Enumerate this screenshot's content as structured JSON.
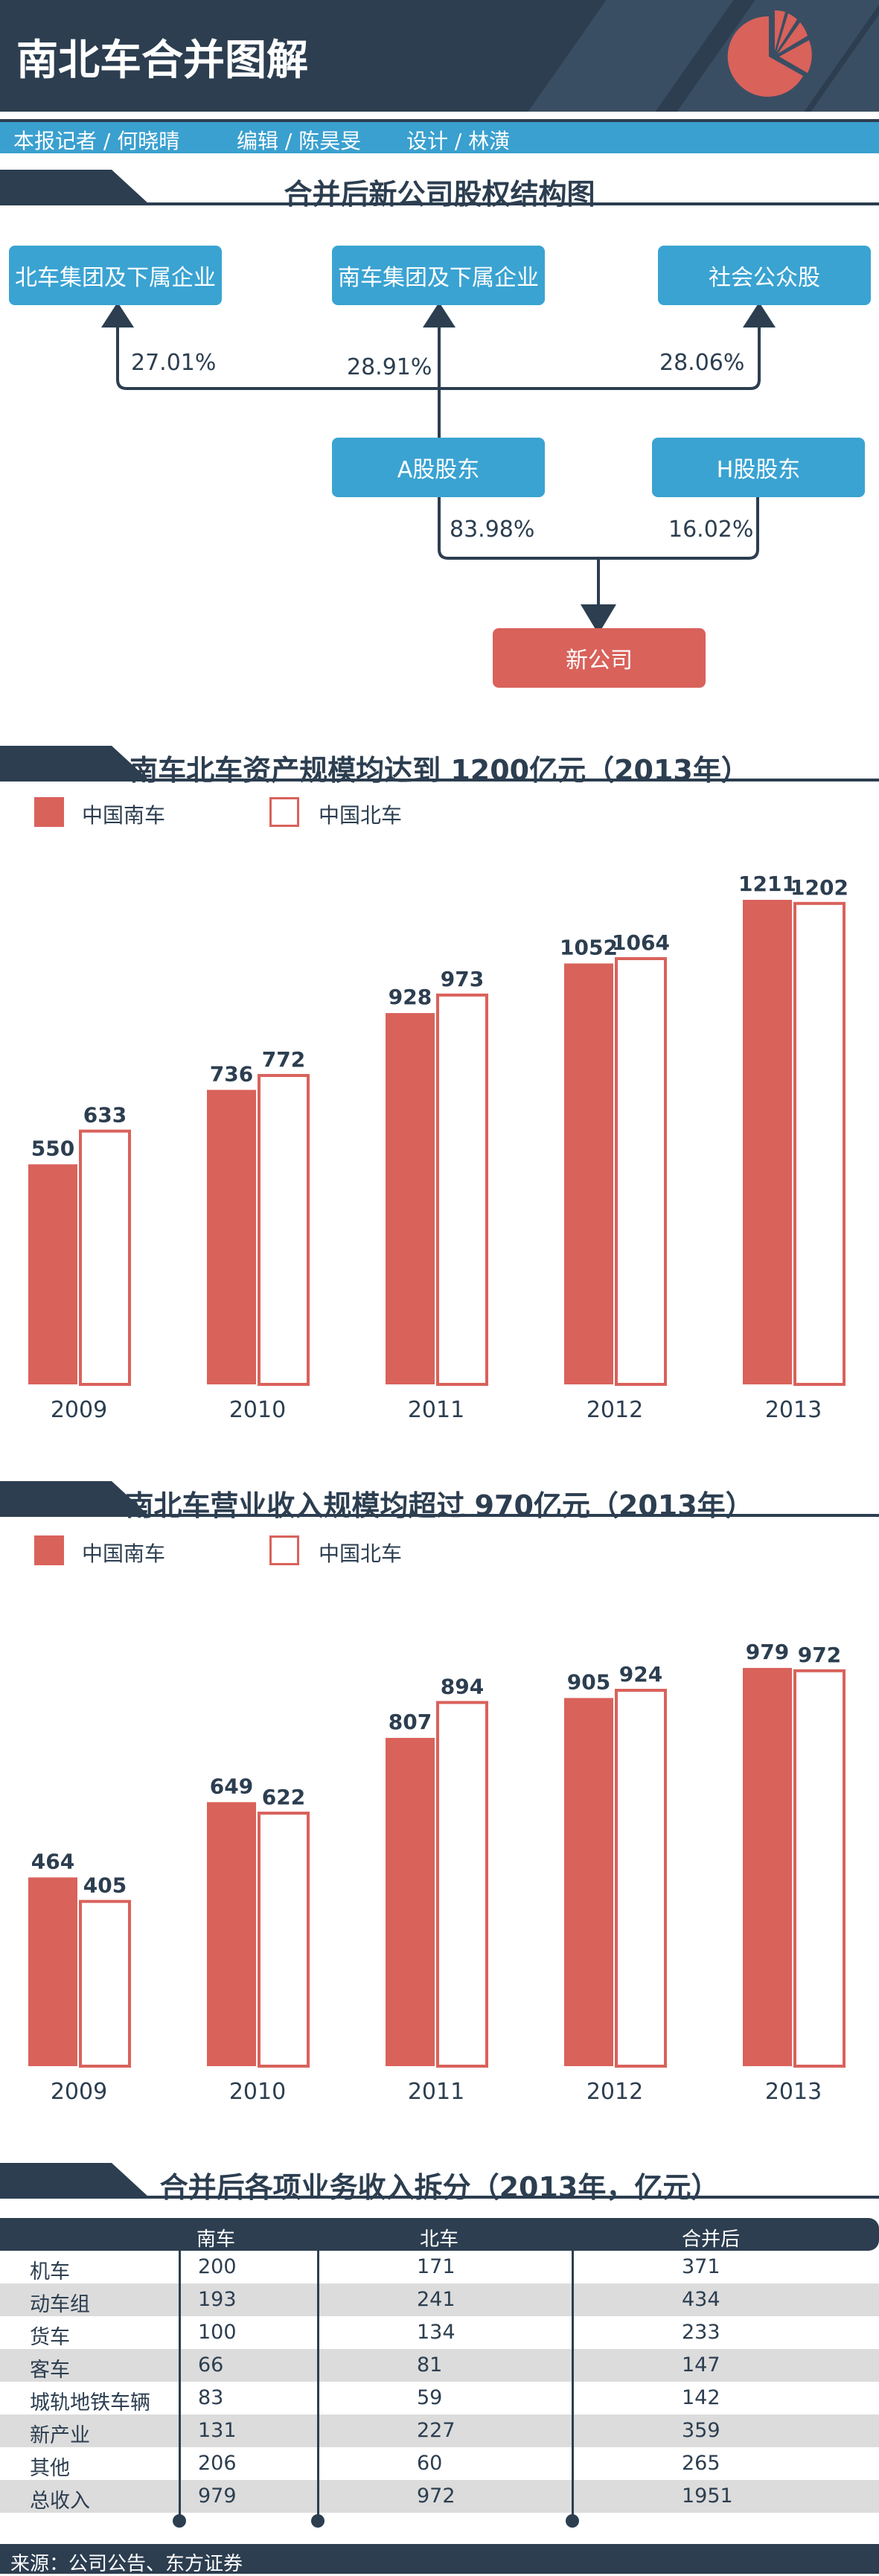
{
  "header": {
    "title": "南北车合并图解",
    "logo": "pie-chart-icon",
    "bg_color": "#2c3e50"
  },
  "credits": {
    "reporter": "本报记者 /  何晓晴",
    "editor": "编辑 / 陈昊旻",
    "design": "设计 / 林潢"
  },
  "structure": {
    "title": "合并后新公司股权结构图",
    "nodes": {
      "north": "北车集团及下属企业",
      "south": "南车集团及下属企业",
      "public": "社会公众股",
      "a_share": "A股股东",
      "h_share": "H股股东",
      "newco": "新公司"
    },
    "pcts": {
      "north": "27.01%",
      "south": "28.91%",
      "public": "28.06%",
      "a_share": "83.98%",
      "h_share": "16.02%"
    }
  },
  "chart_data": [
    {
      "type": "bar",
      "title": "南车北车资产规模均达到 1200亿元（2013年）",
      "categories": [
        "2009",
        "2010",
        "2011",
        "2012",
        "2013"
      ],
      "series": [
        {
          "name": "中国南车",
          "values": [
            550,
            736,
            928,
            1052,
            1211
          ],
          "color": "#d9625b"
        },
        {
          "name": "中国北车",
          "values": [
            633,
            772,
            973,
            1064,
            1202
          ],
          "color": "#ffffff"
        }
      ],
      "ylim": [
        0,
        1250
      ],
      "legend": "top-left",
      "grid": false
    },
    {
      "type": "bar",
      "title": "南北车营业收入规模均超过 970亿元（2013年）",
      "categories": [
        "2009",
        "2010",
        "2011",
        "2012",
        "2013"
      ],
      "series": [
        {
          "name": "中国南车",
          "values": [
            464,
            649,
            807,
            905,
            979
          ],
          "color": "#d9625b"
        },
        {
          "name": "中国北车",
          "values": [
            405,
            622,
            894,
            924,
            972
          ],
          "color": "#ffffff"
        }
      ],
      "ylim": [
        0,
        1010
      ],
      "legend": "top-left",
      "grid": false
    },
    {
      "type": "table",
      "title": "合并后各项业务收入拆分（2013年，亿元）",
      "columns": [
        "",
        "南车",
        "北车",
        "合并后"
      ],
      "rows": [
        [
          "机车",
          "200",
          "171",
          "371"
        ],
        [
          "动车组",
          "193",
          "241",
          "434"
        ],
        [
          "货车",
          "100",
          "134",
          "233"
        ],
        [
          "客车",
          "66",
          "81",
          "147"
        ],
        [
          "城轨地铁车辆",
          "83",
          "59",
          "142"
        ],
        [
          "新产业",
          "131",
          "227",
          "359"
        ],
        [
          "其他",
          "206",
          "60",
          "265"
        ],
        [
          "总收入",
          "979",
          "972",
          "1951"
        ]
      ]
    }
  ],
  "footer": {
    "source": "来源：公司公告、东方证券"
  }
}
